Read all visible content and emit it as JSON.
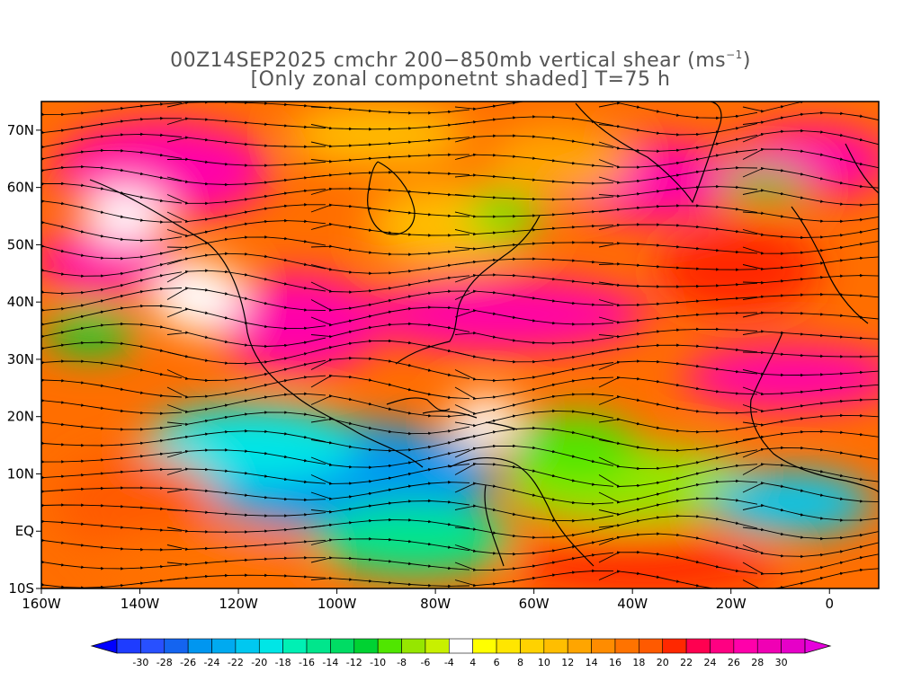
{
  "title": {
    "line1_main": "00Z14SEP2025 cmchr 200−850mb vertical shear (ms",
    "line1_unit_exp": "−1",
    "line1_end": ")",
    "line2": "[Only zonal componetnt shaded] T=75 h"
  },
  "map": {
    "lon_range": [
      -160,
      10
    ],
    "lat_range": [
      -10,
      75
    ],
    "lon_ticks": [
      {
        "lon": -160,
        "label": "160W"
      },
      {
        "lon": -140,
        "label": "140W"
      },
      {
        "lon": -120,
        "label": "120W"
      },
      {
        "lon": -100,
        "label": "100W"
      },
      {
        "lon": -80,
        "label": "80W"
      },
      {
        "lon": -60,
        "label": "60W"
      },
      {
        "lon": -40,
        "label": "40W"
      },
      {
        "lon": -20,
        "label": "20W"
      },
      {
        "lon": 0,
        "label": "0"
      }
    ],
    "lat_ticks": [
      {
        "lat": 70,
        "label": "70N"
      },
      {
        "lat": 60,
        "label": "60N"
      },
      {
        "lat": 50,
        "label": "50N"
      },
      {
        "lat": 40,
        "label": "40N"
      },
      {
        "lat": 30,
        "label": "30N"
      },
      {
        "lat": 20,
        "label": "20N"
      },
      {
        "lat": 10,
        "label": "10N"
      },
      {
        "lat": 0,
        "label": "EQ"
      },
      {
        "lat": -10,
        "label": "10S"
      }
    ],
    "shading": "zonal shear component",
    "overlay": "streamlines (black)",
    "coastline_color": "#000000"
  },
  "colorbar": {
    "labels": [
      "-30",
      "-28",
      "-26",
      "-24",
      "-22",
      "-20",
      "-18",
      "-16",
      "-14",
      "-12",
      "-10",
      "-8",
      "-6",
      "-4",
      "4",
      "6",
      "8",
      "10",
      "12",
      "14",
      "16",
      "18",
      "20",
      "22",
      "24",
      "26",
      "28",
      "30"
    ],
    "colors": [
      "#1e3cff",
      "#2850ff",
      "#1464f0",
      "#0096f0",
      "#00aaf0",
      "#00c8f0",
      "#00e6e6",
      "#00f0b4",
      "#00e68c",
      "#00dc64",
      "#00d232",
      "#50e600",
      "#96e600",
      "#c8f000",
      "#ffffff",
      "#ffff00",
      "#ffe600",
      "#ffd200",
      "#ffbe00",
      "#ffa500",
      "#ff8c00",
      "#ff7300",
      "#ff5a00",
      "#ff2800",
      "#ff0050",
      "#ff0082",
      "#ff00aa",
      "#f000b4",
      "#e600c8"
    ]
  }
}
